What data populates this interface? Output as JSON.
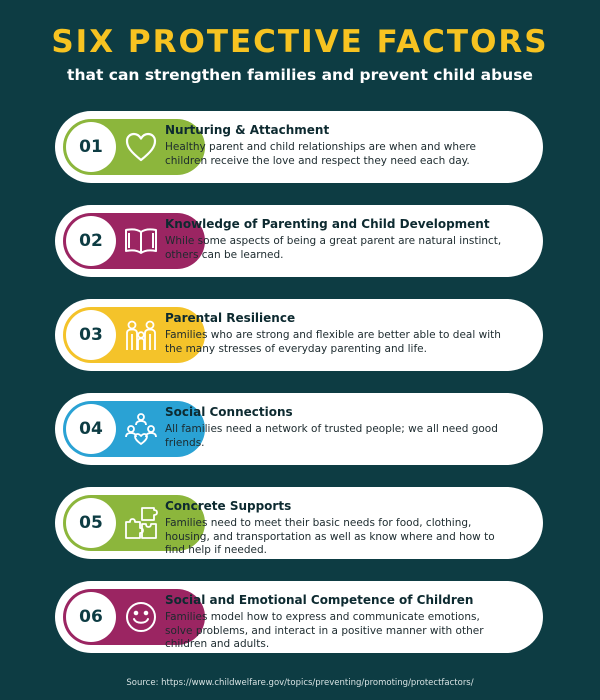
{
  "header": {
    "title": "SIX PROTECTIVE FACTORS",
    "subtitle": "that can strengthen families and prevent child abuse"
  },
  "factors": [
    {
      "number": "01",
      "title": "Nurturing & Attachment",
      "text": "Healthy parent and child relationships are when and where children receive the love and respect they need each day.",
      "color": "#8cb63c",
      "icon": "heart-icon"
    },
    {
      "number": "02",
      "title": "Knowledge of Parenting and Child Development",
      "text": "While some aspects of being a great parent are natural instinct, others can be learned.",
      "color": "#9b2562",
      "icon": "open-book-icon"
    },
    {
      "number": "03",
      "title": "Parental Resilience",
      "text": "Families who are strong and flexible are better able to deal with the many stresses of everyday parenting and life.",
      "color": "#f4c32a",
      "icon": "family-icon"
    },
    {
      "number": "04",
      "title": "Social Connections",
      "text": "All families need a network of trusted people; we all need good friends.",
      "color": "#2aa2d4",
      "icon": "people-network-icon"
    },
    {
      "number": "05",
      "title": "Concrete Supports",
      "text": "Families need to meet their basic needs for food, clothing, housing, and transportation as well as know where and how to find help if needed.",
      "color": "#8cb63c",
      "icon": "puzzle-icon"
    },
    {
      "number": "06",
      "title": "Social and Emotional Competence of Children",
      "text": "Families model how to express and communicate emotions, solve problems, and interact in a positive manner with other children and adults.",
      "color": "#9b2562",
      "icon": "smiley-icon"
    }
  ],
  "footer": {
    "source": "Source: https://www.childwelfare.gov/topics/preventing/promoting/protectfactors/"
  }
}
